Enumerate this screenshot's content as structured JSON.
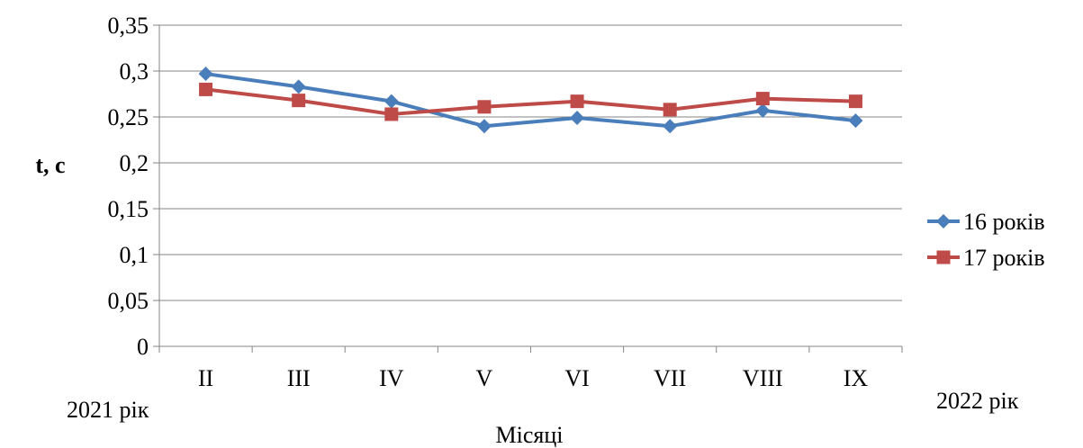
{
  "chart_data": {
    "type": "line",
    "categories": [
      "II",
      "III",
      "IV",
      "V",
      "VI",
      "VII",
      "VIII",
      "IX"
    ],
    "series": [
      {
        "name": "16 років",
        "color": "#4a7ebb",
        "marker": "diamond",
        "values": [
          0.297,
          0.283,
          0.267,
          0.24,
          0.249,
          0.24,
          0.257,
          0.246
        ]
      },
      {
        "name": "17 років",
        "color": "#be4b48",
        "marker": "square",
        "values": [
          0.28,
          0.268,
          0.253,
          0.261,
          0.267,
          0.258,
          0.27,
          0.267
        ]
      }
    ],
    "ylabel": "t, c",
    "xlabel": "Місяці",
    "ylim": [
      0,
      0.35
    ],
    "ytick_step": 0.05,
    "yticks": [
      "0",
      "0,05",
      "0,1",
      "0,15",
      "0,2",
      "0,25",
      "0,3",
      "0,35"
    ],
    "grid": true,
    "legend_position": "right",
    "x_start_note": "2021 рік",
    "x_end_note": "2022 рік"
  }
}
